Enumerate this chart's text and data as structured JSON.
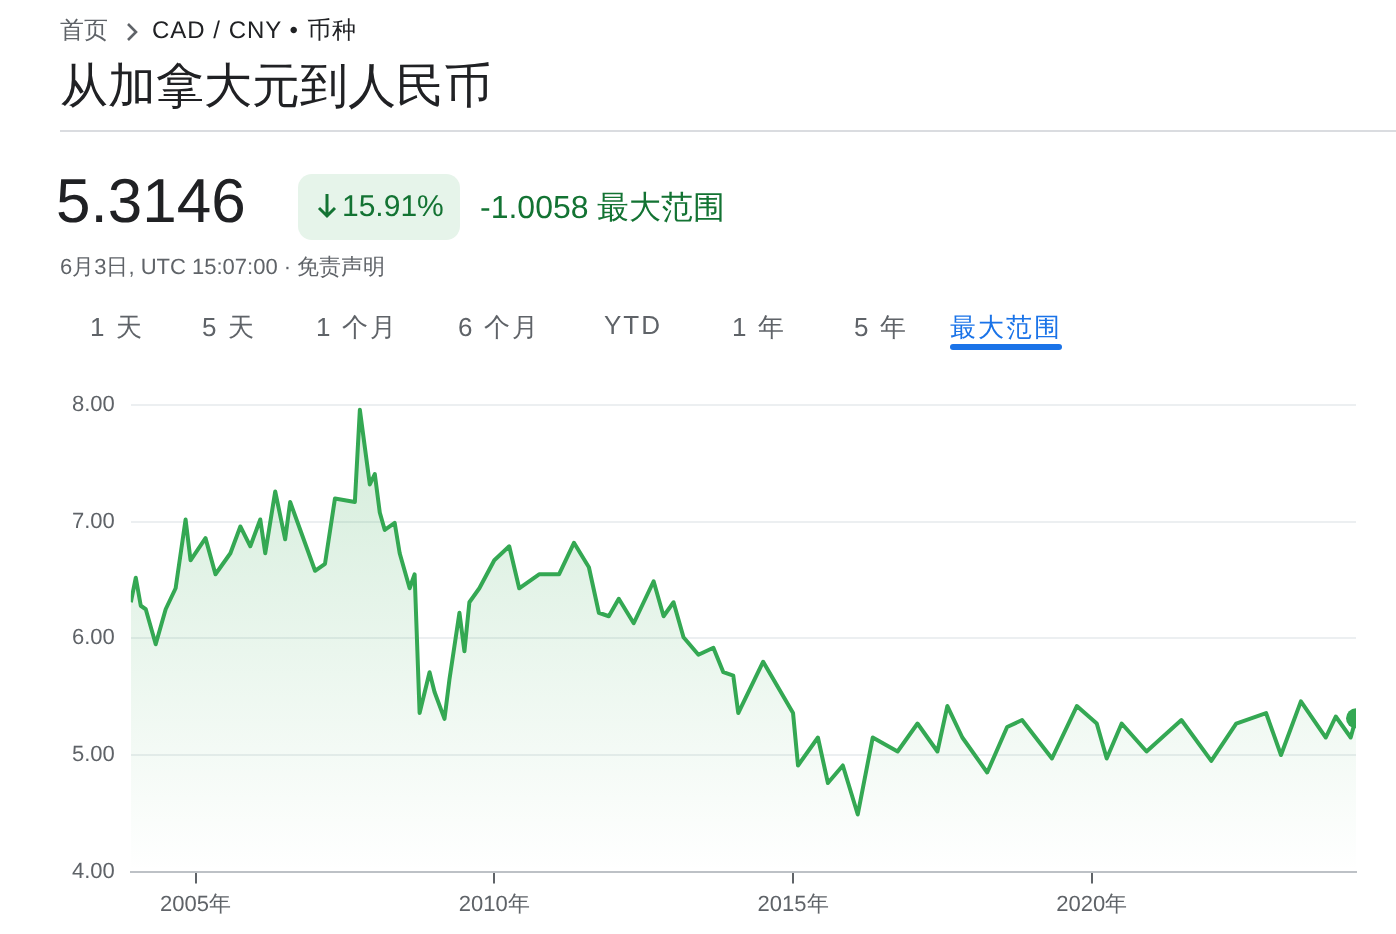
{
  "chart_data": {
    "type": "area",
    "title": "从加拿大元到人民币",
    "annotations": [
      "首页",
      "CAD / CNY • 币种",
      "5.3146",
      "15.91%",
      "-1.0058 最大范围",
      "6月3日, UTC 15:07:00 · 免责声明",
      "1 天",
      "5 天",
      "1 个月",
      "6 个月",
      "YTD",
      "1 年",
      "5 年",
      "最大范围"
    ],
    "x": [
      "2003-12",
      "2004-01",
      "2004-02",
      "2004-03",
      "2004-05",
      "2004-07",
      "2004-09",
      "2004-11",
      "2004-12",
      "2005-03",
      "2005-05",
      "2005-08",
      "2005-10",
      "2005-12",
      "2006-02",
      "2006-03",
      "2006-05",
      "2006-07",
      "2006-08",
      "2007-01",
      "2007-03",
      "2007-05",
      "2007-09",
      "2007-10",
      "2007-12",
      "2008-01",
      "2008-02",
      "2008-03",
      "2008-05",
      "2008-06",
      "2008-08",
      "2008-09",
      "2008-10",
      "2008-12",
      "2009-01",
      "2009-03",
      "2009-04",
      "2009-06",
      "2009-07",
      "2009-08",
      "2009-10",
      "2010-01",
      "2010-04",
      "2010-06",
      "2010-10",
      "2011-02",
      "2011-05",
      "2011-08",
      "2011-10",
      "2011-12",
      "2012-02",
      "2012-05",
      "2012-09",
      "2012-11",
      "2013-01",
      "2013-03",
      "2013-06",
      "2013-09",
      "2013-11",
      "2014-01",
      "2014-02",
      "2014-07",
      "2015-01",
      "2015-02",
      "2015-06",
      "2015-08",
      "2015-11",
      "2016-02",
      "2016-05",
      "2016-10",
      "2017-02",
      "2017-06",
      "2017-08",
      "2017-11",
      "2018-04",
      "2018-08",
      "2018-11",
      "2019-05",
      "2019-10",
      "2020-02",
      "2020-04",
      "2020-07",
      "2020-12",
      "2021-07",
      "2022-01",
      "2022-06",
      "2022-12",
      "2023-03",
      "2023-07",
      "2023-12",
      "2024-02",
      "2024-05",
      "2024-06-03"
    ],
    "series": [
      {
        "color": "#34a853",
        "values": [
          6.31,
          6.52,
          6.28,
          6.25,
          5.95,
          6.25,
          6.43,
          7.02,
          6.67,
          6.86,
          6.55,
          6.73,
          6.96,
          6.79,
          7.02,
          6.73,
          7.26,
          6.85,
          7.17,
          6.58,
          6.64,
          7.2,
          7.17,
          7.96,
          7.32,
          7.41,
          7.08,
          6.93,
          6.99,
          6.73,
          6.43,
          6.55,
          5.36,
          5.71,
          5.54,
          5.31,
          5.65,
          6.22,
          5.89,
          6.31,
          6.43,
          6.67,
          6.79,
          6.43,
          6.55,
          6.55,
          6.82,
          6.61,
          6.22,
          6.19,
          6.34,
          6.13,
          6.49,
          6.19,
          6.31,
          6.01,
          5.86,
          5.92,
          5.71,
          5.68,
          5.36,
          5.8,
          5.36,
          4.91,
          5.15,
          4.76,
          4.91,
          4.49,
          5.15,
          5.03,
          5.27,
          5.03,
          5.42,
          5.15,
          4.85,
          5.24,
          5.3,
          4.97,
          5.42,
          5.27,
          4.97,
          5.27,
          5.03,
          5.3,
          4.95,
          5.27,
          5.36,
          5,
          5.46,
          5.15,
          5.33,
          5.15,
          5.3146
        ]
      }
    ],
    "xlim": [
      "2003-12",
      "2024-06-03"
    ],
    "xticks": [
      {
        "value": "2005",
        "label": "2005年"
      },
      {
        "value": "2010",
        "label": "2010年"
      },
      {
        "value": "2015",
        "label": "2015年"
      },
      {
        "value": "2020",
        "label": "2020年"
      }
    ],
    "ylim": [
      4,
      8
    ],
    "yticks": [
      {
        "value": 4,
        "label": "4.00"
      },
      {
        "value": 5,
        "label": "5.00"
      },
      {
        "value": 6,
        "label": "6.00"
      },
      {
        "value": 7,
        "label": "7.00"
      },
      {
        "value": 8,
        "label": "8.00"
      }
    ],
    "grid": "y",
    "legend": false
  }
}
